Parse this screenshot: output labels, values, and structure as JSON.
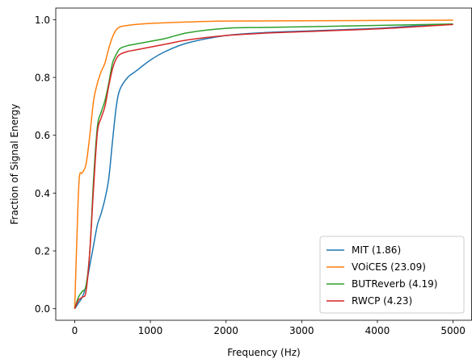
{
  "chart_data": {
    "type": "line",
    "title": "",
    "xlabel": "Frequency (Hz)",
    "ylabel": "Fraction of Signal Energy",
    "xlim": [
      -250,
      5250
    ],
    "ylim": [
      -0.04,
      1.04
    ],
    "xticks": [
      0,
      1000,
      2000,
      3000,
      4000,
      5000
    ],
    "yticks": [
      0.0,
      0.2,
      0.4,
      0.6,
      0.8,
      1.0
    ],
    "xtick_labels": [
      "0",
      "1000",
      "2000",
      "3000",
      "4000",
      "5000"
    ],
    "ytick_labels": [
      "0.0",
      "0.2",
      "0.4",
      "0.6",
      "0.8",
      "1.0"
    ],
    "grid": false,
    "legend_position": "lower-right",
    "series": [
      {
        "name": "MIT (1.86)",
        "color": "#1f77b4",
        "x": [
          0,
          50,
          100,
          150,
          200,
          250,
          300,
          350,
          400,
          450,
          500,
          550,
          600,
          700,
          800,
          1000,
          1200,
          1500,
          2000,
          2500,
          3000,
          3500,
          4000,
          4500,
          5000
        ],
        "y": [
          0.0,
          0.02,
          0.04,
          0.08,
          0.15,
          0.22,
          0.29,
          0.33,
          0.38,
          0.45,
          0.58,
          0.7,
          0.76,
          0.8,
          0.82,
          0.86,
          0.89,
          0.92,
          0.945,
          0.955,
          0.96,
          0.965,
          0.97,
          0.978,
          0.985
        ]
      },
      {
        "name": "VOiCES (23.09)",
        "color": "#ff7f0e",
        "x": [
          0,
          30,
          60,
          100,
          150,
          200,
          250,
          300,
          350,
          400,
          450,
          500,
          550,
          600,
          700,
          800,
          1000,
          1500,
          2000,
          3000,
          4000,
          5000
        ],
        "y": [
          0.0,
          0.25,
          0.45,
          0.47,
          0.5,
          0.6,
          0.72,
          0.78,
          0.82,
          0.85,
          0.9,
          0.94,
          0.965,
          0.975,
          0.98,
          0.983,
          0.987,
          0.992,
          0.995,
          0.996,
          0.997,
          0.998
        ]
      },
      {
        "name": "BUTReverb (4.19)",
        "color": "#2ca02c",
        "x": [
          0,
          50,
          100,
          150,
          200,
          250,
          300,
          350,
          400,
          450,
          500,
          550,
          600,
          700,
          800,
          1000,
          1200,
          1500,
          2000,
          2500,
          3000,
          4000,
          5000
        ],
        "y": [
          0.0,
          0.04,
          0.06,
          0.08,
          0.2,
          0.45,
          0.63,
          0.68,
          0.72,
          0.78,
          0.85,
          0.88,
          0.9,
          0.91,
          0.915,
          0.925,
          0.935,
          0.955,
          0.97,
          0.973,
          0.975,
          0.98,
          0.985
        ]
      },
      {
        "name": "RWCP (4.23)",
        "color": "#d62728",
        "x": [
          0,
          50,
          100,
          150,
          200,
          250,
          300,
          350,
          400,
          450,
          500,
          550,
          600,
          700,
          800,
          1000,
          1200,
          1500,
          2000,
          2500,
          3000,
          4000,
          5000
        ],
        "y": [
          0.0,
          0.03,
          0.04,
          0.06,
          0.2,
          0.42,
          0.61,
          0.66,
          0.7,
          0.77,
          0.83,
          0.865,
          0.88,
          0.89,
          0.895,
          0.905,
          0.915,
          0.93,
          0.945,
          0.953,
          0.958,
          0.968,
          0.983
        ]
      }
    ]
  }
}
